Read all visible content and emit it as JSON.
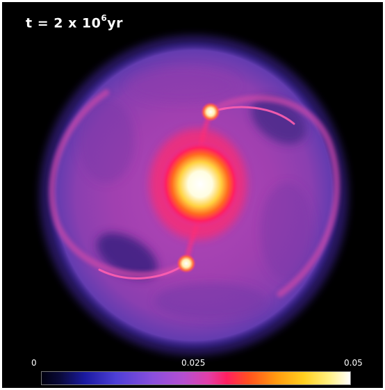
{
  "time_label": {
    "prefix": "t = 2 x 10",
    "exponent": "6",
    "unit": "yr"
  },
  "colorbar": {
    "min_label": "0",
    "mid_label": "0.025",
    "max_label": "0.05",
    "colors": [
      "#00000f",
      "#1a1aa0",
      "#8a4fdc",
      "#e23fa8",
      "#ff2060",
      "#ff9a10",
      "#ffd020",
      "#ffffff"
    ]
  }
}
